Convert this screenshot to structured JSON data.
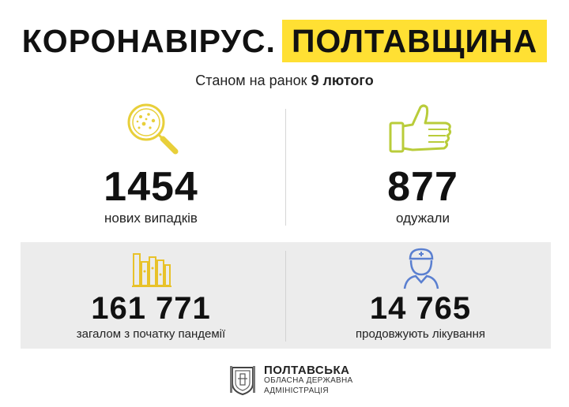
{
  "header": {
    "title_left": "КОРОНАВІРУС.",
    "title_right": "ПОЛТАВЩИНА",
    "accent_color": "#ffe033"
  },
  "date": {
    "prefix": "Станом на ранок ",
    "value": "9 лютого"
  },
  "stats": {
    "new_cases": {
      "value": "1454",
      "label": "нових випадків",
      "icon": "virus-magnifier-icon"
    },
    "recovered": {
      "value": "877",
      "label": "одужали",
      "icon": "thumbs-up-icon"
    },
    "total": {
      "value": "161 771",
      "label": "загалом з початку пандемії",
      "icon": "bar-chart-icon"
    },
    "treatment": {
      "value": "14 765",
      "label": "продовжують лікування",
      "icon": "doctor-icon"
    }
  },
  "footer": {
    "line1": "ПОЛТАВСЬКА",
    "line2": "ОБЛАСНА ДЕРЖАВНА",
    "line3": "АДМІНІСТРАЦІЯ",
    "logo_icon": "coat-of-arms-icon"
  }
}
